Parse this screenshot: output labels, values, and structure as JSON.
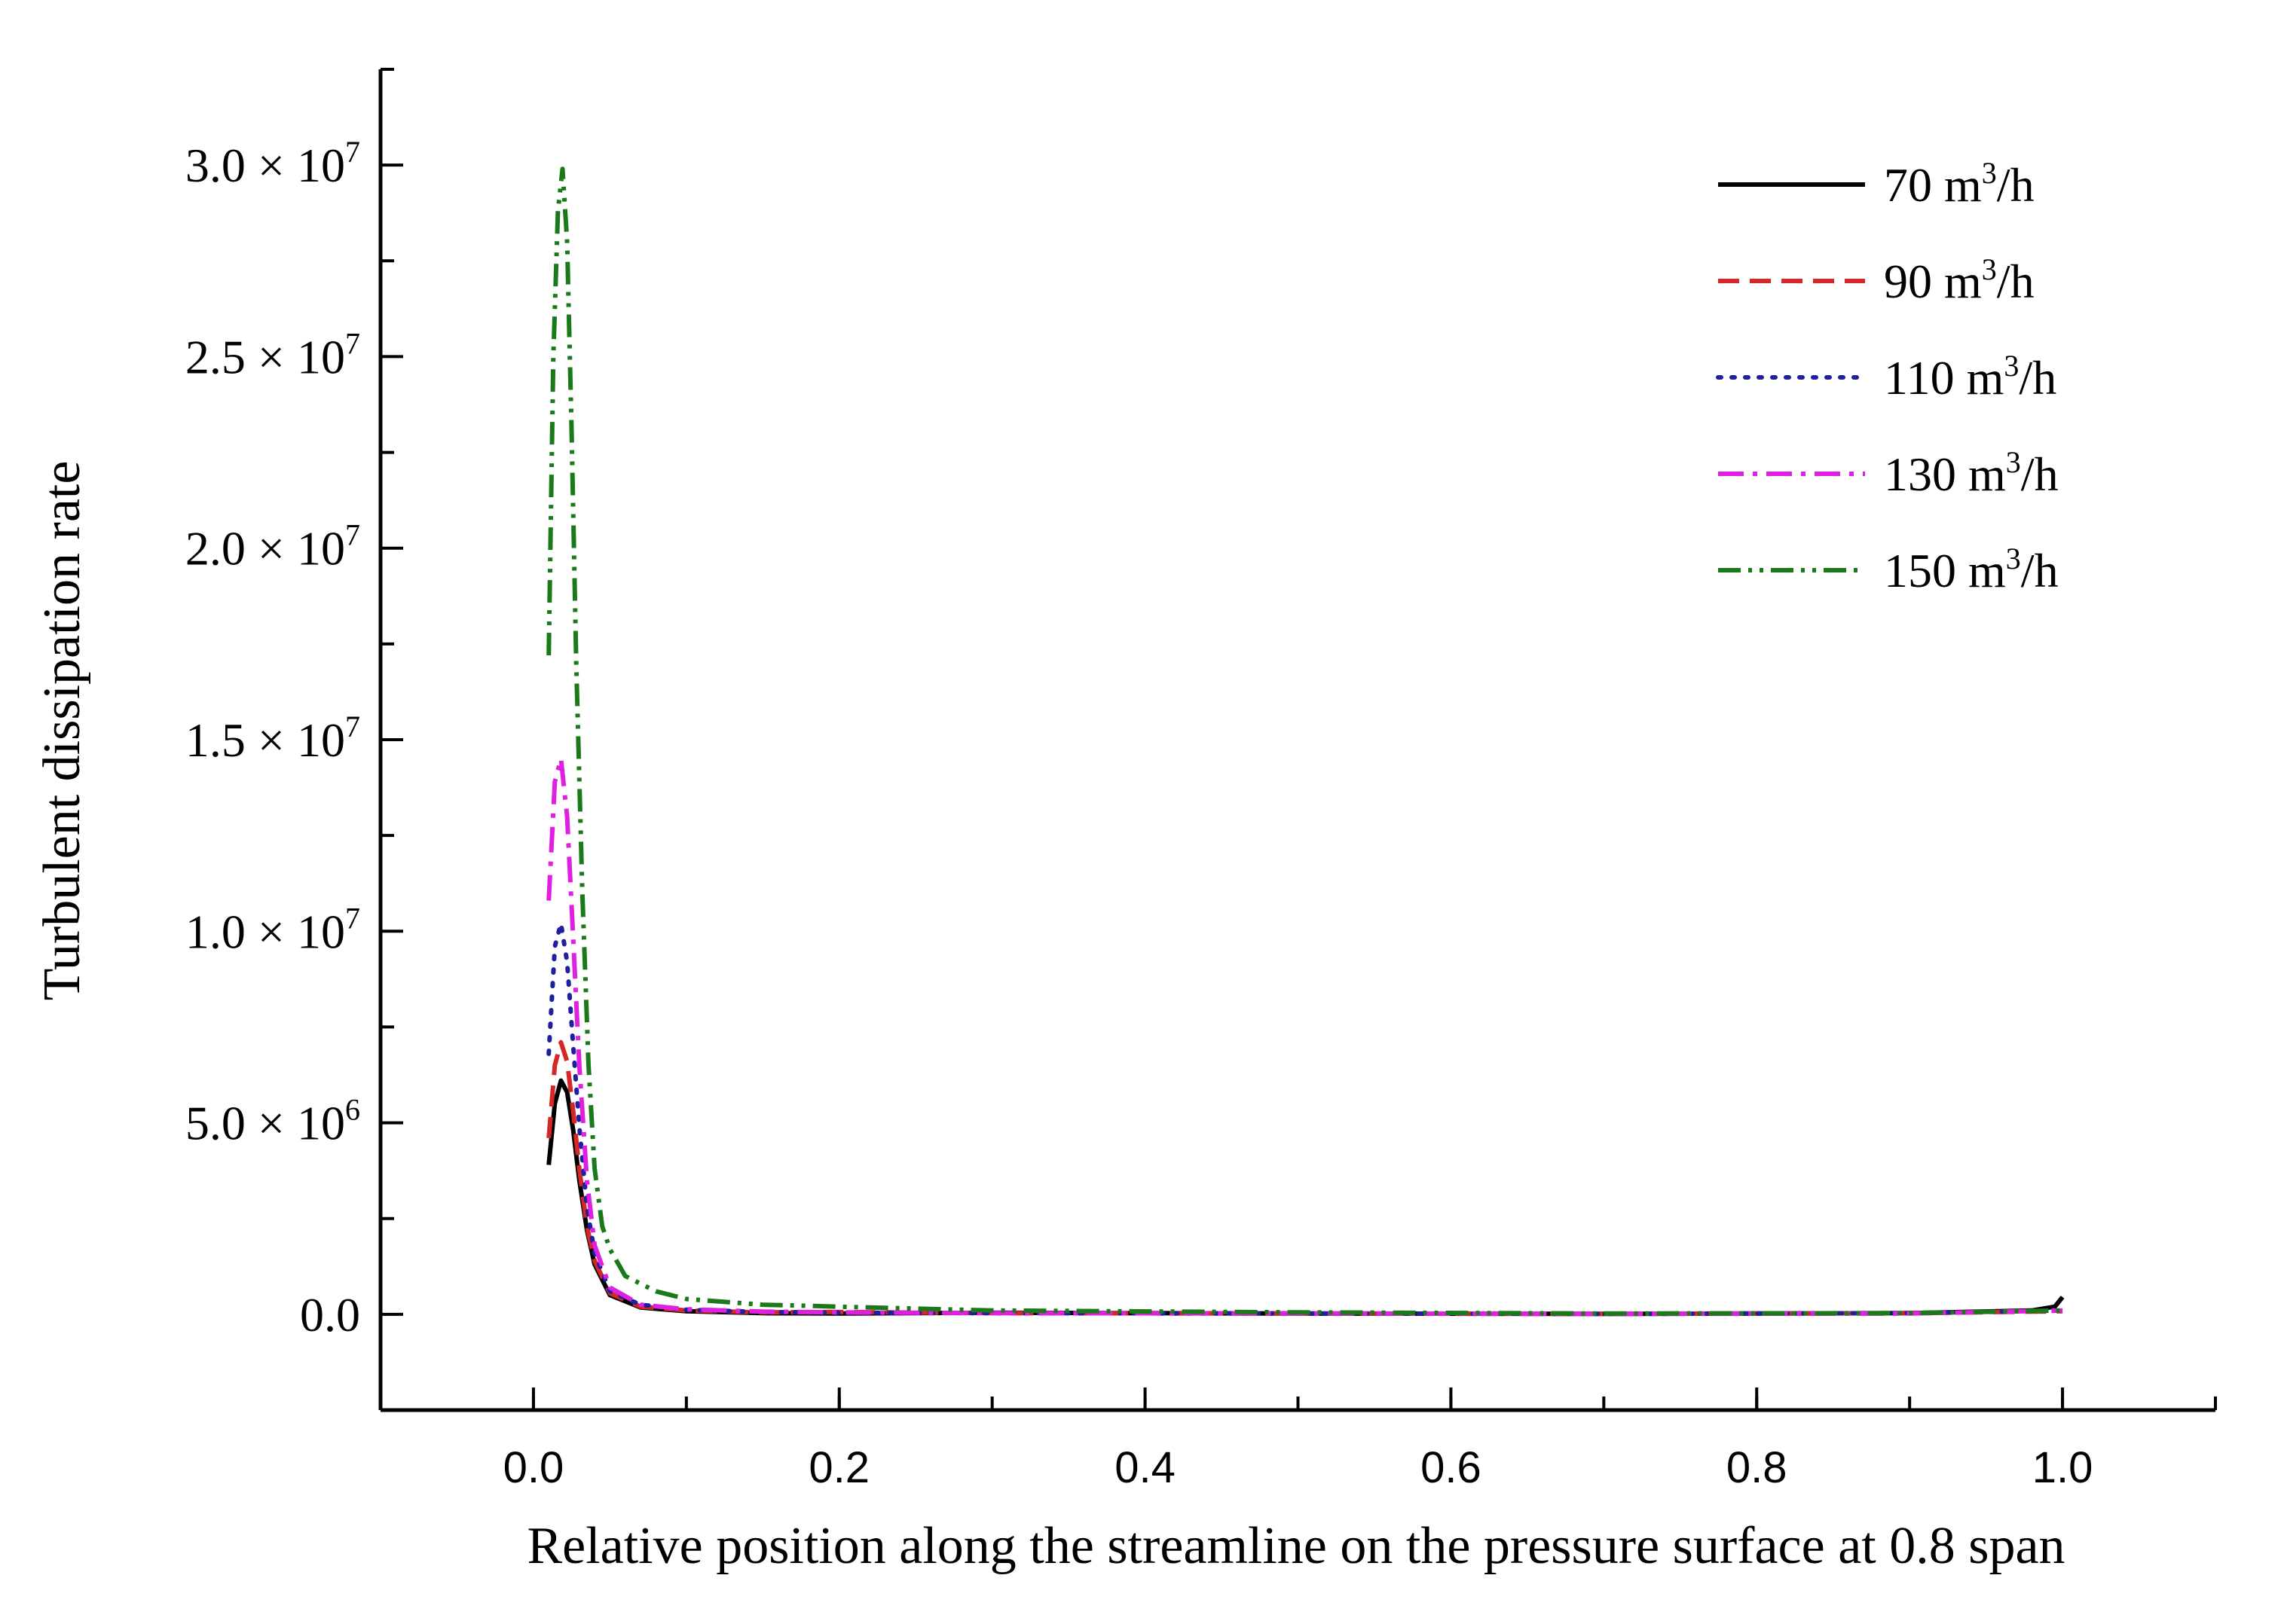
{
  "chart_data": {
    "type": "line",
    "title": "",
    "xlabel": "Relative position along the streamline on the pressure surface at 0.8 span",
    "ylabel": "Turbulent dissipation rate",
    "xlim": [
      -0.1,
      1.1
    ],
    "ylim": [
      -2500000,
      32500000
    ],
    "grid": false,
    "legend_position": "top-right",
    "x_ticks": [
      {
        "value": 0.0,
        "label": "0.0"
      },
      {
        "value": 0.2,
        "label": "0.2"
      },
      {
        "value": 0.4,
        "label": "0.4"
      },
      {
        "value": 0.6,
        "label": "0.6"
      },
      {
        "value": 0.8,
        "label": "0.8"
      },
      {
        "value": 1.0,
        "label": "1.0"
      }
    ],
    "y_ticks": [
      {
        "value": 0,
        "mant": "0.0",
        "exp": ""
      },
      {
        "value": 5000000,
        "mant": "5.0 × 10",
        "exp": "6"
      },
      {
        "value": 10000000,
        "mant": "1.0 × 10",
        "exp": "7"
      },
      {
        "value": 15000000,
        "mant": "1.5 × 10",
        "exp": "7"
      },
      {
        "value": 20000000,
        "mant": "2.0 × 10",
        "exp": "7"
      },
      {
        "value": 25000000,
        "mant": "2.5 × 10",
        "exp": "7"
      },
      {
        "value": 30000000,
        "mant": "3.0 × 10",
        "exp": "7"
      }
    ],
    "series": [
      {
        "name": "70 m³/h",
        "label_num": "70",
        "label_unit": "m",
        "label_sup": "3",
        "label_tail": "/h",
        "color": "#000000",
        "dash": "",
        "x": [
          0.01,
          0.014,
          0.018,
          0.022,
          0.026,
          0.03,
          0.035,
          0.04,
          0.05,
          0.07,
          0.1,
          0.15,
          0.2,
          0.3,
          0.5,
          0.7,
          0.9,
          0.98,
          0.995,
          1.0
        ],
        "y": [
          3900000,
          5500000,
          6100000,
          5800000,
          4800000,
          3500000,
          2200000,
          1300000,
          500000,
          180000,
          80000,
          30000,
          20000,
          40000,
          20000,
          10000,
          30000,
          100000,
          200000,
          450000
        ]
      },
      {
        "name": "90 m³/h",
        "label_num": "90",
        "label_unit": "m",
        "label_sup": "3",
        "label_tail": "/h",
        "color": "#d62728",
        "dash": "28,14",
        "x": [
          0.01,
          0.014,
          0.018,
          0.022,
          0.026,
          0.03,
          0.035,
          0.04,
          0.05,
          0.07,
          0.1,
          0.15,
          0.2,
          0.3,
          0.5,
          0.7,
          0.9,
          1.0
        ],
        "y": [
          4600000,
          6500000,
          7100000,
          6600000,
          5300000,
          3800000,
          2300000,
          1400000,
          550000,
          200000,
          100000,
          50000,
          60000,
          30000,
          20000,
          10000,
          30000,
          80000
        ]
      },
      {
        "name": "110 m³/h",
        "label_num": "110",
        "label_unit": "m",
        "label_sup": "3",
        "label_tail": "/h",
        "color": "#1f1fa0",
        "dash": "4,14",
        "x": [
          0.01,
          0.014,
          0.018,
          0.022,
          0.026,
          0.03,
          0.035,
          0.04,
          0.05,
          0.07,
          0.1,
          0.15,
          0.2,
          0.3,
          0.5,
          0.7,
          0.9,
          1.0
        ],
        "y": [
          6800000,
          9600000,
          10200000,
          9200000,
          7000000,
          4900000,
          2800000,
          1600000,
          600000,
          250000,
          120000,
          60000,
          40000,
          30000,
          20000,
          10000,
          30000,
          100000
        ]
      },
      {
        "name": "130 m³/h",
        "label_num": "130",
        "label_unit": "m",
        "label_sup": "3",
        "label_tail": "/h",
        "color": "#e020e0",
        "dash": "34,12,6,12",
        "x": [
          0.01,
          0.014,
          0.018,
          0.022,
          0.026,
          0.03,
          0.035,
          0.04,
          0.05,
          0.07,
          0.1,
          0.15,
          0.2,
          0.3,
          0.5,
          0.7,
          0.9,
          1.0
        ],
        "y": [
          10800000,
          13900000,
          14500000,
          13000000,
          9800000,
          6500000,
          3500000,
          1800000,
          700000,
          250000,
          130000,
          70000,
          50000,
          30000,
          20000,
          10000,
          20000,
          100000
        ]
      },
      {
        "name": "150 m³/h",
        "label_num": "150",
        "label_unit": "m",
        "label_sup": "3",
        "label_tail": "/h",
        "color": "#1a7a1a",
        "dash": "30,10,5,10,5,10",
        "x": [
          0.01,
          0.013,
          0.016,
          0.019,
          0.022,
          0.025,
          0.028,
          0.032,
          0.036,
          0.04,
          0.045,
          0.05,
          0.06,
          0.08,
          0.1,
          0.15,
          0.2,
          0.3,
          0.5,
          0.7,
          0.9,
          1.0
        ],
        "y": [
          17200000,
          25000000,
          28800000,
          29900000,
          28000000,
          23000000,
          17000000,
          11000000,
          6500000,
          3800000,
          2300000,
          1700000,
          1000000,
          600000,
          400000,
          250000,
          200000,
          100000,
          50000,
          20000,
          30000,
          100000
        ]
      }
    ]
  }
}
